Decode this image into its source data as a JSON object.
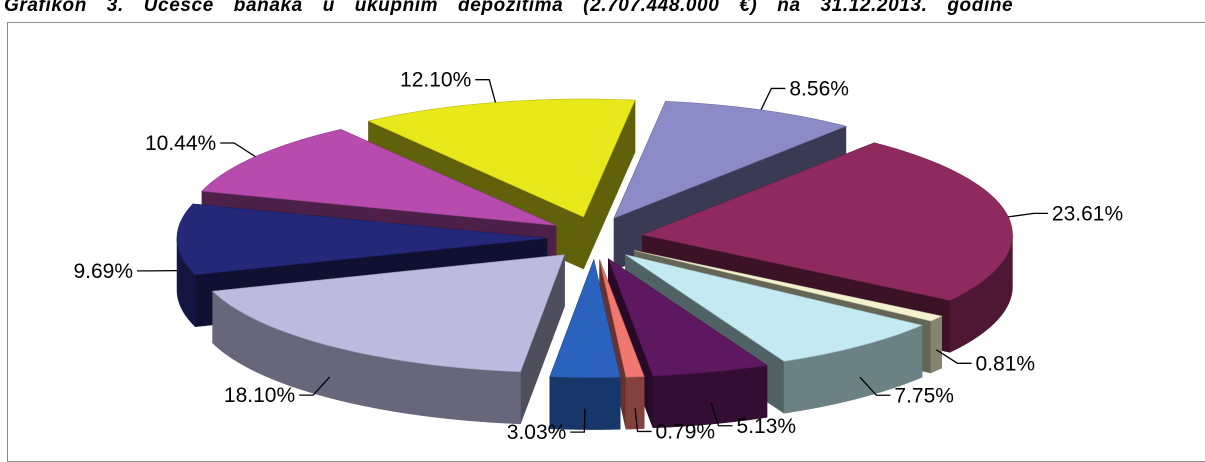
{
  "title": "Grafikon 3. Učešće banaka u ukupnim depozitima (2.707.448.000 €) na 31.12.2013. godine",
  "chart_data": {
    "type": "pie",
    "style": "3d-exploded",
    "slices": [
      {
        "value": 8.56,
        "label": "8.56%",
        "color": "#8B8BC8"
      },
      {
        "value": 23.61,
        "label": "23.61%",
        "color": "#8E2A5E"
      },
      {
        "value": 0.81,
        "label": "0.81%",
        "color": "#F4F2CE"
      },
      {
        "value": 7.75,
        "label": "7.75%",
        "color": "#C2EAF0"
      },
      {
        "value": 5.13,
        "label": "5.13%",
        "color": "#5E1860"
      },
      {
        "value": 0.79,
        "label": "0.79%",
        "color": "#F07870"
      },
      {
        "value": 3.03,
        "label": "3.03%",
        "color": "#2A62BE"
      },
      {
        "value": 18.1,
        "label": "18.10%",
        "color": "#BCBADE"
      },
      {
        "value": 9.69,
        "label": "9.69%",
        "color": "#252878"
      },
      {
        "value": 10.44,
        "label": "10.44%",
        "color": "#B84CAE"
      },
      {
        "value": 12.1,
        "label": "12.10%",
        "color": "#E8E81A"
      }
    ]
  }
}
